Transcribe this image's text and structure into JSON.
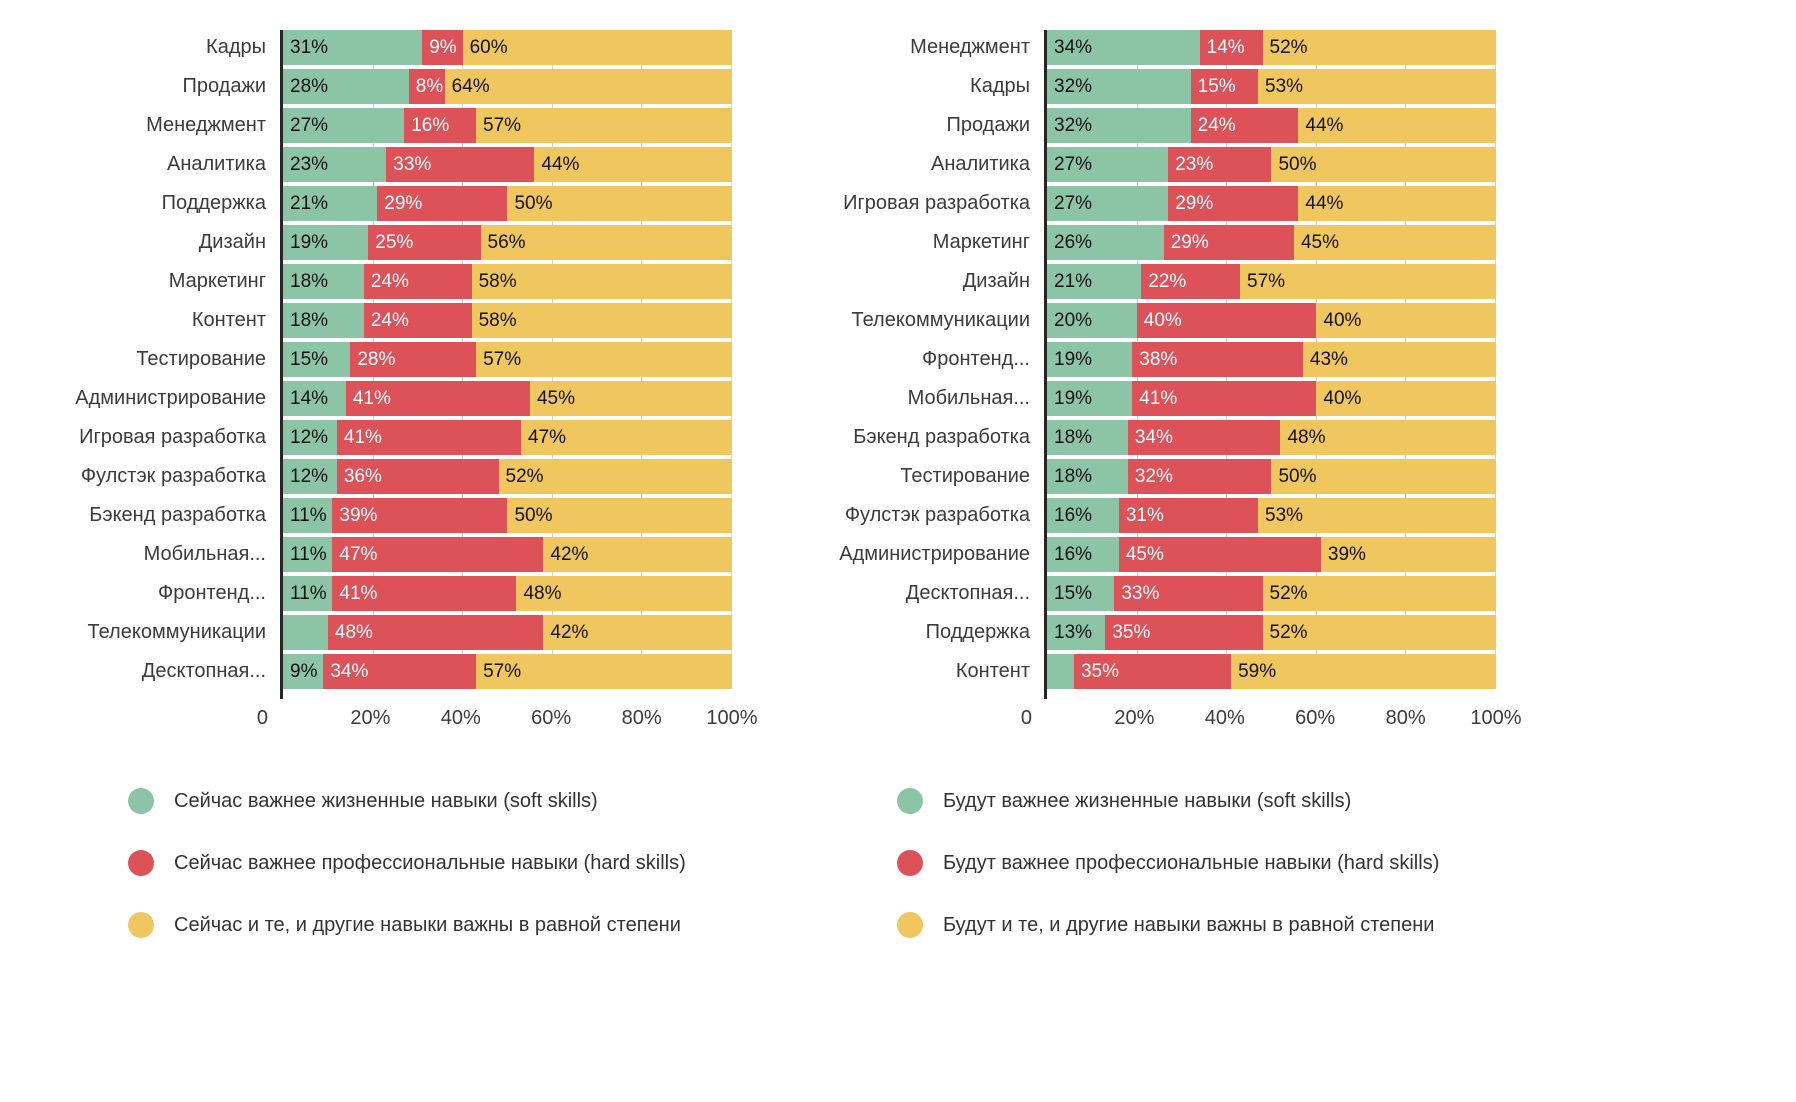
{
  "page": {
    "background": "#ffffff"
  },
  "colors": {
    "soft": "#8cc4a6",
    "hard": "#dd5258",
    "equal": "#f0c65f",
    "axis": "#262626",
    "gridline": "#d4d4d4",
    "category_text": "#3b3b3b",
    "value_text_dark": "#111111",
    "value_text_light": "#ffffff"
  },
  "chart_data": [
    {
      "id": "now",
      "type": "bar",
      "stacked": true,
      "orientation": "horizontal",
      "xlim": [
        0,
        100
      ],
      "grid": true,
      "legend_position": "bottom",
      "x_ticks": [
        {
          "value": 0,
          "label": "0"
        },
        {
          "value": 20,
          "label": "20%"
        },
        {
          "value": 40,
          "label": "40%"
        },
        {
          "value": 60,
          "label": "60%"
        },
        {
          "value": 80,
          "label": "80%"
        },
        {
          "value": 100,
          "label": "100%"
        }
      ],
      "series": [
        {
          "key": "soft",
          "name": "Сейчас важнее жизненные навыки (soft skills)",
          "color": "#8cc4a6"
        },
        {
          "key": "hard",
          "name": "Сейчас важнее профессиональные навыки (hard skills)",
          "color": "#dd5258"
        },
        {
          "key": "equal",
          "name": "Сейчас и те, и другие навыки важны в равной степени",
          "color": "#f0c65f"
        }
      ],
      "rows": [
        {
          "category": "Кадры",
          "values": [
            31,
            9,
            60
          ],
          "labels": [
            "31%",
            "9%",
            "60%"
          ]
        },
        {
          "category": "Продажи",
          "values": [
            28,
            8,
            64
          ],
          "labels": [
            "28%",
            "8%",
            "64%"
          ]
        },
        {
          "category": "Менеджмент",
          "values": [
            27,
            16,
            57
          ],
          "labels": [
            "27%",
            "16%",
            "57%"
          ]
        },
        {
          "category": "Аналитика",
          "values": [
            23,
            33,
            44
          ],
          "labels": [
            "23%",
            "33%",
            "44%"
          ]
        },
        {
          "category": "Поддержка",
          "values": [
            21,
            29,
            50
          ],
          "labels": [
            "21%",
            "29%",
            "50%"
          ]
        },
        {
          "category": "Дизайн",
          "values": [
            19,
            25,
            56
          ],
          "labels": [
            "19%",
            "25%",
            "56%"
          ]
        },
        {
          "category": "Маркетинг",
          "values": [
            18,
            24,
            58
          ],
          "labels": [
            "18%",
            "24%",
            "58%"
          ]
        },
        {
          "category": "Контент",
          "values": [
            18,
            24,
            58
          ],
          "labels": [
            "18%",
            "24%",
            "58%"
          ]
        },
        {
          "category": "Тестирование",
          "values": [
            15,
            28,
            57
          ],
          "labels": [
            "15%",
            "28%",
            "57%"
          ]
        },
        {
          "category": "Администрирование",
          "values": [
            14,
            41,
            45
          ],
          "labels": [
            "14%",
            "41%",
            "45%"
          ]
        },
        {
          "category": "Игровая разработка",
          "values": [
            12,
            41,
            47
          ],
          "labels": [
            "12%",
            "41%",
            "47%"
          ]
        },
        {
          "category": "Фулстэк разработка",
          "values": [
            12,
            36,
            52
          ],
          "labels": [
            "12%",
            "36%",
            "52%"
          ]
        },
        {
          "category": "Бэкенд разработка",
          "values": [
            11,
            39,
            50
          ],
          "labels": [
            "11%",
            "39%",
            "50%"
          ]
        },
        {
          "category": "Мобильная...",
          "values": [
            11,
            47,
            42
          ],
          "labels": [
            "11%",
            "47%",
            "42%"
          ]
        },
        {
          "category": "Фронтенд...",
          "values": [
            11,
            41,
            48
          ],
          "labels": [
            "11%",
            "41%",
            "48%"
          ]
        },
        {
          "category": "Телекоммуникации",
          "values": [
            10,
            48,
            42
          ],
          "labels": [
            "",
            "48%",
            "42%"
          ]
        },
        {
          "category": "Десктопная...",
          "values": [
            9,
            34,
            57
          ],
          "labels": [
            "9%",
            "34%",
            "57%"
          ]
        }
      ]
    },
    {
      "id": "future",
      "type": "bar",
      "stacked": true,
      "orientation": "horizontal",
      "xlim": [
        0,
        100
      ],
      "grid": true,
      "legend_position": "bottom",
      "x_ticks": [
        {
          "value": 0,
          "label": "0"
        },
        {
          "value": 20,
          "label": "20%"
        },
        {
          "value": 40,
          "label": "40%"
        },
        {
          "value": 60,
          "label": "60%"
        },
        {
          "value": 80,
          "label": "80%"
        },
        {
          "value": 100,
          "label": "100%"
        }
      ],
      "series": [
        {
          "key": "soft",
          "name": "Будут важнее жизненные навыки (soft skills)",
          "color": "#8cc4a6"
        },
        {
          "key": "hard",
          "name": "Будут важнее профессиональные навыки (hard skills)",
          "color": "#dd5258"
        },
        {
          "key": "equal",
          "name": "Будут и те, и другие навыки важны в равной степени",
          "color": "#f0c65f"
        }
      ],
      "rows": [
        {
          "category": "Менеджмент",
          "values": [
            34,
            14,
            52
          ],
          "labels": [
            "34%",
            "14%",
            "52%"
          ]
        },
        {
          "category": "Кадры",
          "values": [
            32,
            15,
            53
          ],
          "labels": [
            "32%",
            "15%",
            "53%"
          ]
        },
        {
          "category": "Продажи",
          "values": [
            32,
            24,
            44
          ],
          "labels": [
            "32%",
            "24%",
            "44%"
          ]
        },
        {
          "category": "Аналитика",
          "values": [
            27,
            23,
            50
          ],
          "labels": [
            "27%",
            "23%",
            "50%"
          ]
        },
        {
          "category": "Игровая разработка",
          "values": [
            27,
            29,
            44
          ],
          "labels": [
            "27%",
            "29%",
            "44%"
          ]
        },
        {
          "category": "Маркетинг",
          "values": [
            26,
            29,
            45
          ],
          "labels": [
            "26%",
            "29%",
            "45%"
          ]
        },
        {
          "category": "Дизайн",
          "values": [
            21,
            22,
            57
          ],
          "labels": [
            "21%",
            "22%",
            "57%"
          ]
        },
        {
          "category": "Телекоммуникации",
          "values": [
            20,
            40,
            40
          ],
          "labels": [
            "20%",
            "40%",
            "40%"
          ]
        },
        {
          "category": "Фронтенд...",
          "values": [
            19,
            38,
            43
          ],
          "labels": [
            "19%",
            "38%",
            "43%"
          ]
        },
        {
          "category": "Мобильная...",
          "values": [
            19,
            41,
            40
          ],
          "labels": [
            "19%",
            "41%",
            "40%"
          ]
        },
        {
          "category": "Бэкенд разработка",
          "values": [
            18,
            34,
            48
          ],
          "labels": [
            "18%",
            "34%",
            "48%"
          ]
        },
        {
          "category": "Тестирование",
          "values": [
            18,
            32,
            50
          ],
          "labels": [
            "18%",
            "32%",
            "50%"
          ]
        },
        {
          "category": "Фулстэк разработка",
          "values": [
            16,
            31,
            53
          ],
          "labels": [
            "16%",
            "31%",
            "53%"
          ]
        },
        {
          "category": "Администрирование",
          "values": [
            16,
            45,
            39
          ],
          "labels": [
            "16%",
            "45%",
            "39%"
          ]
        },
        {
          "category": "Десктопная...",
          "values": [
            15,
            33,
            52
          ],
          "labels": [
            "15%",
            "33%",
            "52%"
          ]
        },
        {
          "category": "Поддержка",
          "values": [
            13,
            35,
            52
          ],
          "labels": [
            "13%",
            "35%",
            "52%"
          ]
        },
        {
          "category": "Контент",
          "values": [
            6,
            35,
            59
          ],
          "labels": [
            "",
            "35%",
            "59%"
          ]
        }
      ]
    }
  ]
}
